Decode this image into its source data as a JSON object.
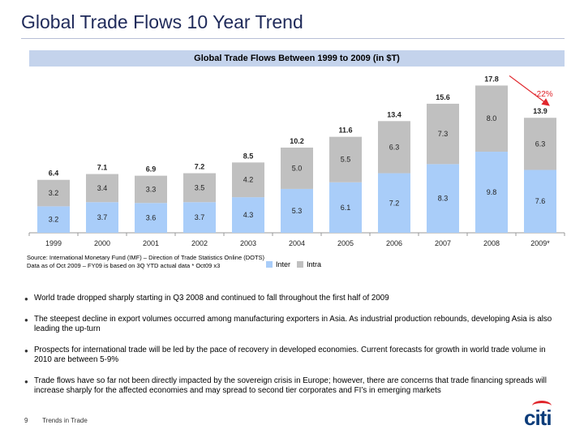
{
  "slide": {
    "title": "Global Trade Flows 10 Year Trend",
    "page_number": "9",
    "footer_text": "Trends in Trade",
    "logo_text": "citi"
  },
  "colors": {
    "inter": "#a9cdf9",
    "intra": "#c0c0c0",
    "banner": "#c4d3ec",
    "title": "#1f2a5a",
    "annotation": "#e0262c",
    "logo_blue": "#0b3c7a"
  },
  "chart_data": {
    "type": "bar",
    "stacked": true,
    "title": "Global Trade Flows Between 1999 to 2009 (in $T)",
    "categories": [
      "1999",
      "2000",
      "2001",
      "2002",
      "2003",
      "2004",
      "2005",
      "2006",
      "2007",
      "2008",
      "2009*"
    ],
    "series": [
      {
        "name": "Inter",
        "color": "#a9cdf9",
        "values": [
          3.2,
          3.7,
          3.6,
          3.7,
          4.3,
          5.3,
          6.1,
          7.2,
          8.3,
          9.8,
          7.6
        ]
      },
      {
        "name": "Intra",
        "color": "#c0c0c0",
        "values": [
          3.2,
          3.4,
          3.3,
          3.5,
          4.2,
          5.0,
          5.5,
          6.3,
          7.3,
          8.0,
          6.3
        ]
      }
    ],
    "totals": [
      6.4,
      7.1,
      6.9,
      7.2,
      8.5,
      10.2,
      11.6,
      13.4,
      15.6,
      17.8,
      13.9
    ],
    "annotation": {
      "text": "-22%",
      "from_category": "2008",
      "to_category": "2009*"
    },
    "ylim": [
      0,
      18
    ],
    "grid": false,
    "legend_placement": "bottom"
  },
  "source": {
    "line1": "Source: International Monetary Fund (IMF) – Direction of Trade Statistics Online (DOTS)",
    "line2": "Data as of Oct 2009 – FY09 is based on 3Q YTD actual data * Oct09 x3"
  },
  "bullets": [
    "World trade dropped sharply starting in Q3 2008 and continued to fall throughout the first half of 2009",
    "The steepest decline in export volumes occurred among manufacturing exporters in Asia.  As industrial production rebounds, developing Asia is also leading the up-turn",
    "Prospects for international trade will be led by the pace of recovery in developed economies.  Current forecasts for growth in world trade volume in 2010 are between 5-9%",
    "Trade flows have so far not been directly impacted by the sovereign crisis in Europe; however, there are concerns that trade financing spreads will increase sharply for the affected economies and may spread to second tier corporates and FI’s in emerging markets"
  ]
}
